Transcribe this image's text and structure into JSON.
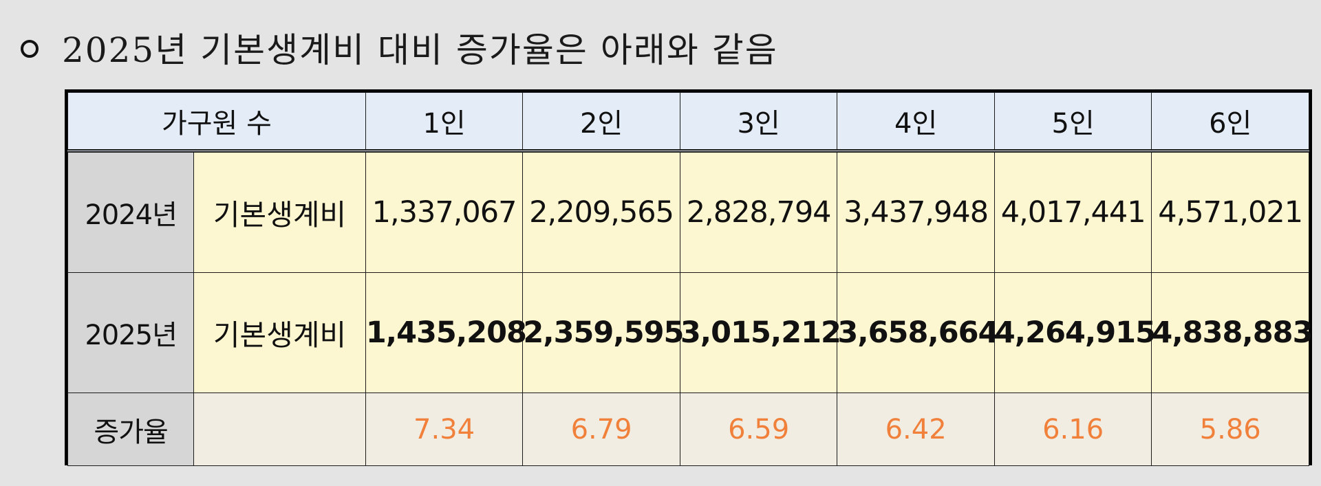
{
  "heading": {
    "bullet": "circle-bullet",
    "text": "2025년 기본생계비 대비 증가율은 아래와 같음"
  },
  "table": {
    "header": {
      "group_label": "가구원 수",
      "columns": [
        "1인",
        "2인",
        "3인",
        "4인",
        "5인",
        "6인"
      ]
    },
    "rows": [
      {
        "year": "2024년",
        "label": "기본생계비",
        "values": [
          "1,337,067",
          "2,209,565",
          "2,828,794",
          "3,437,948",
          "4,017,441",
          "4,571,021"
        ]
      },
      {
        "year": "2025년",
        "label": "기본생계비",
        "values": [
          "1,435,208",
          "2,359,595",
          "3,015,212",
          "3,658,664",
          "4,264,915",
          "4,838,883"
        ]
      }
    ],
    "rate_row": {
      "label": "증가율",
      "label2": "",
      "values": [
        "7.34",
        "6.79",
        "6.59",
        "6.42",
        "6.16",
        "5.86"
      ]
    }
  },
  "colors": {
    "header_bg": "#e4edf7",
    "year_bg": "#d6d6d6",
    "data_bg": "#fdf7d1",
    "rate_bg": "#f1ede3",
    "rate_text": "#f0803a",
    "page_bg": "#e4e4e4"
  }
}
